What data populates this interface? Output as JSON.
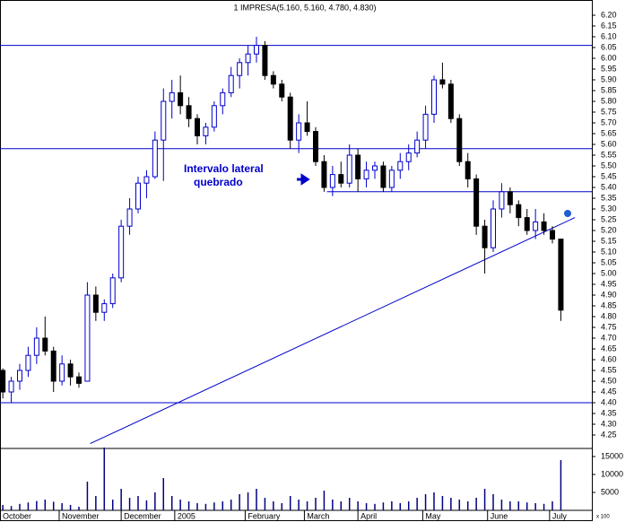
{
  "chart_data": {
    "type": "candlestick",
    "title": "1 IMPRESA(5.160, 5.160, 4.780, 4.830)",
    "annotation": [
      "Intervalo lateral",
      "quebrado"
    ],
    "volume_label": "x 100",
    "x": [
      1,
      4,
      7,
      10,
      13,
      16,
      19,
      22,
      25,
      28,
      31,
      34,
      37,
      40,
      43,
      46,
      49,
      52,
      55,
      58,
      61,
      64,
      67,
      70,
      73,
      76,
      79,
      82,
      85,
      88,
      91,
      94,
      97,
      100,
      103,
      106,
      109,
      112,
      115,
      118,
      121,
      124,
      127,
      130,
      133,
      136,
      139,
      142,
      145,
      148,
      151,
      154,
      157,
      160,
      163,
      166,
      169,
      172,
      175,
      178,
      181,
      184,
      187,
      190,
      193,
      196,
      199
    ],
    "open": [
      4.55,
      4.45,
      4.5,
      4.55,
      4.62,
      4.7,
      4.64,
      4.5,
      4.58,
      4.52,
      4.5,
      4.9,
      4.82,
      4.86,
      4.98,
      5.22,
      5.3,
      5.42,
      5.45,
      5.62,
      5.8,
      5.84,
      5.78,
      5.72,
      5.64,
      5.68,
      5.78,
      5.84,
      5.92,
      5.98,
      6.02,
      6.06,
      5.92,
      5.88,
      5.82,
      5.62,
      5.7,
      5.66,
      5.52,
      5.4,
      5.46,
      5.42,
      5.55,
      5.44,
      5.48,
      5.5,
      5.4,
      5.48,
      5.52,
      5.56,
      5.62,
      5.74,
      5.9,
      5.88,
      5.72,
      5.52,
      5.44,
      5.22,
      5.12,
      5.3,
      5.38,
      5.32,
      5.26,
      5.2,
      5.24,
      5.2,
      5.16
    ],
    "high": [
      4.56,
      4.52,
      4.58,
      4.66,
      4.75,
      4.8,
      4.66,
      4.62,
      4.6,
      4.54,
      4.96,
      4.94,
      4.88,
      5.0,
      5.25,
      5.35,
      5.45,
      5.48,
      5.66,
      5.86,
      5.9,
      5.92,
      5.82,
      5.74,
      5.7,
      5.8,
      5.86,
      5.96,
      6.0,
      6.06,
      6.1,
      6.08,
      5.94,
      5.9,
      5.84,
      5.74,
      5.8,
      5.68,
      5.55,
      5.5,
      5.52,
      5.6,
      5.58,
      5.52,
      5.52,
      5.52,
      5.5,
      5.56,
      5.6,
      5.66,
      5.78,
      5.92,
      5.98,
      5.9,
      5.74,
      5.56,
      5.46,
      5.25,
      5.34,
      5.42,
      5.4,
      5.34,
      5.3,
      5.3,
      5.28,
      5.22,
      5.16
    ],
    "low": [
      4.42,
      4.4,
      4.46,
      4.52,
      4.58,
      4.62,
      4.45,
      4.48,
      4.48,
      4.47,
      4.5,
      4.78,
      4.78,
      4.84,
      4.96,
      5.18,
      5.28,
      5.35,
      5.44,
      5.43,
      5.72,
      5.74,
      5.68,
      5.6,
      5.6,
      5.66,
      5.74,
      5.82,
      5.86,
      5.92,
      5.98,
      5.9,
      5.86,
      5.8,
      5.58,
      5.56,
      5.64,
      5.5,
      5.38,
      5.36,
      5.4,
      5.4,
      5.38,
      5.4,
      5.44,
      5.38,
      5.38,
      5.44,
      5.48,
      5.54,
      5.58,
      5.7,
      5.86,
      5.7,
      5.5,
      5.4,
      5.18,
      5.0,
      5.1,
      5.26,
      5.28,
      5.22,
      5.18,
      5.16,
      5.18,
      5.14,
      4.78
    ],
    "close": [
      4.45,
      4.5,
      4.55,
      4.62,
      4.7,
      4.64,
      4.5,
      4.58,
      4.52,
      4.49,
      4.9,
      4.82,
      4.86,
      4.98,
      5.22,
      5.3,
      5.42,
      5.45,
      5.62,
      5.8,
      5.84,
      5.78,
      5.72,
      5.64,
      5.68,
      5.78,
      5.84,
      5.92,
      5.98,
      6.02,
      6.06,
      5.92,
      5.88,
      5.82,
      5.62,
      5.7,
      5.66,
      5.52,
      5.4,
      5.46,
      5.42,
      5.55,
      5.44,
      5.48,
      5.5,
      5.4,
      5.48,
      5.52,
      5.56,
      5.62,
      5.74,
      5.9,
      5.88,
      5.72,
      5.52,
      5.44,
      5.22,
      5.12,
      5.3,
      5.38,
      5.32,
      5.26,
      5.2,
      5.24,
      5.2,
      5.16,
      4.83
    ],
    "volume": [
      1500,
      1200,
      1800,
      2200,
      2600,
      3000,
      2400,
      2000,
      1500,
      1000,
      8000,
      4000,
      17500,
      3000,
      6000,
      3500,
      4000,
      2800,
      5000,
      9000,
      4000,
      3000,
      2500,
      2000,
      1800,
      2200,
      2500,
      3000,
      4500,
      5000,
      6000,
      3500,
      2500,
      2000,
      4000,
      3000,
      2500,
      3500,
      5500,
      3000,
      2500,
      3500,
      2500,
      2000,
      1800,
      2200,
      2500,
      2000,
      2500,
      3500,
      4500,
      5000,
      4000,
      3500,
      3000,
      2500,
      3500,
      6000,
      4500,
      3000,
      2500,
      2500,
      2200,
      2000,
      1800,
      2500,
      14000
    ],
    "up_color": "#0000cc",
    "down_color": "#000000",
    "line_color": "#0000cc",
    "xlim": [
      0,
      210
    ],
    "xticks": [
      {
        "value": 0,
        "label": "October"
      },
      {
        "value": 21,
        "label": "November"
      },
      {
        "value": 43,
        "label": "December"
      },
      {
        "value": 62,
        "label": "2005"
      },
      {
        "value": 87,
        "label": "February"
      },
      {
        "value": 108,
        "label": "March"
      },
      {
        "value": 127,
        "label": "April"
      },
      {
        "value": 150,
        "label": "May"
      },
      {
        "value": 173,
        "label": "June"
      },
      {
        "value": 195,
        "label": "July"
      }
    ],
    "ylim": [
      4.2,
      6.25
    ],
    "yticks": [
      {
        "value": 4.25,
        "label": "4.25"
      },
      {
        "value": 4.3,
        "label": "4.30"
      },
      {
        "value": 4.35,
        "label": "4.35"
      },
      {
        "value": 4.4,
        "label": "4.40"
      },
      {
        "value": 4.45,
        "label": "4.45"
      },
      {
        "value": 4.5,
        "label": "4.50"
      },
      {
        "value": 4.55,
        "label": "4.55"
      },
      {
        "value": 4.6,
        "label": "4.60"
      },
      {
        "value": 4.65,
        "label": "4.65"
      },
      {
        "value": 4.7,
        "label": "4.70"
      },
      {
        "value": 4.75,
        "label": "4.75"
      },
      {
        "value": 4.8,
        "label": "4.80"
      },
      {
        "value": 4.85,
        "label": "4.85"
      },
      {
        "value": 4.9,
        "label": "4.90"
      },
      {
        "value": 4.95,
        "label": "4.95"
      },
      {
        "value": 5.0,
        "label": "5.00"
      },
      {
        "value": 5.05,
        "label": "5.05"
      },
      {
        "value": 5.1,
        "label": "5.10"
      },
      {
        "value": 5.15,
        "label": "5.15"
      },
      {
        "value": 5.2,
        "label": "5.20"
      },
      {
        "value": 5.25,
        "label": "5.25"
      },
      {
        "value": 5.3,
        "label": "5.30"
      },
      {
        "value": 5.35,
        "label": "5.35"
      },
      {
        "value": 5.4,
        "label": "5.40"
      },
      {
        "value": 5.45,
        "label": "5.45"
      },
      {
        "value": 5.5,
        "label": "5.50"
      },
      {
        "value": 5.55,
        "label": "5.55"
      },
      {
        "value": 5.6,
        "label": "5.60"
      },
      {
        "value": 5.65,
        "label": "5.65"
      },
      {
        "value": 5.7,
        "label": "5.70"
      },
      {
        "value": 5.75,
        "label": "5.75"
      },
      {
        "value": 5.8,
        "label": "5.80"
      },
      {
        "value": 5.85,
        "label": "5.85"
      },
      {
        "value": 5.9,
        "label": "5.90"
      },
      {
        "value": 5.95,
        "label": "5.95"
      },
      {
        "value": 6.0,
        "label": "6.00"
      },
      {
        "value": 6.05,
        "label": "6.05"
      },
      {
        "value": 6.1,
        "label": "6.10"
      },
      {
        "value": 6.15,
        "label": "6.15"
      },
      {
        "value": 6.2,
        "label": "6.20"
      }
    ],
    "volume_ylim": [
      0,
      16000
    ],
    "volume_yticks": [
      5000,
      10000,
      15000
    ],
    "hlines": [
      6.06,
      5.58,
      4.4
    ],
    "support": {
      "x": [
        116,
        210
      ],
      "y": [
        5.38,
        5.38
      ]
    },
    "trendline": {
      "x": [
        32,
        204
      ],
      "y": [
        4.21,
        5.26
      ]
    }
  }
}
